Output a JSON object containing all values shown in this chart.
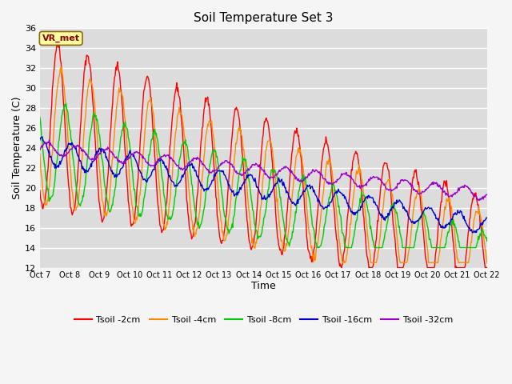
{
  "title": "Soil Temperature Set 3",
  "xlabel": "Time",
  "ylabel": "Soil Temperature (C)",
  "ylim": [
    12,
    36
  ],
  "yticks": [
    12,
    14,
    16,
    18,
    20,
    22,
    24,
    26,
    28,
    30,
    32,
    34,
    36
  ],
  "xtick_labels": [
    "Oct 7",
    "Oct 8",
    "Oct 9",
    "Oct 10",
    "Oct 11",
    "Oct 12",
    "Oct 13",
    "Oct 14",
    "Oct 15",
    "Oct 16",
    "Oct 17",
    "Oct 18",
    "Oct 19",
    "Oct 20",
    "Oct 21",
    "Oct 22"
  ],
  "annotation_text": "VR_met",
  "annotation_color": "#8B0000",
  "annotation_bg": "#FFFFA0",
  "fig_bg_color": "#F5F5F5",
  "plot_bg": "#DCDCDC",
  "grid_color": "#FFFFFF",
  "colors": {
    "Tsoil_2cm": "#FF0000",
    "Tsoil_4cm": "#FF8C00",
    "Tsoil_8cm": "#00CC00",
    "Tsoil_16cm": "#0000CC",
    "Tsoil_32cm": "#9900CC"
  },
  "legend_labels": [
    "Tsoil -2cm",
    "Tsoil -4cm",
    "Tsoil -8cm",
    "Tsoil -16cm",
    "Tsoil -32cm"
  ],
  "linewidth": 1.0,
  "figsize": [
    6.4,
    4.8
  ],
  "dpi": 100
}
